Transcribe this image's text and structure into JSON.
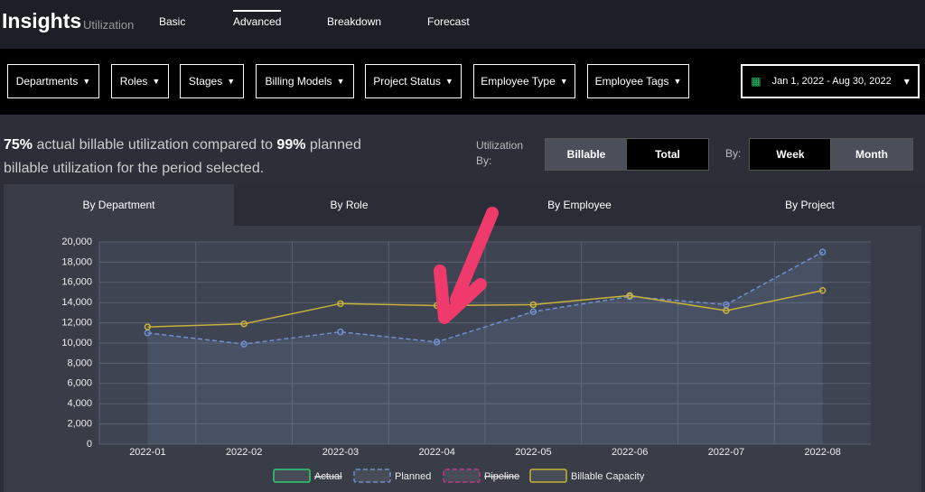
{
  "header": {
    "title": "Insights",
    "subtitle": "Utilization",
    "nav": [
      "Basic",
      "Advanced",
      "Breakdown",
      "Forecast"
    ]
  },
  "filters": [
    "Departments",
    "Roles",
    "Stages",
    "Billing Models",
    "Project Status",
    "Employee Type",
    "Employee Tags"
  ],
  "date_range": "Jan 1, 2022 - Aug 30, 2022",
  "summary": {
    "actual": "75%",
    "text1": "actual billable utilization compared to",
    "planned": "99%",
    "text2": "planned billable utilization for the period selected."
  },
  "utilization_by": {
    "label": "Utilization By:",
    "options": [
      "Billable",
      "Total"
    ]
  },
  "period_by": {
    "label": "By:",
    "options": [
      "Week",
      "Month"
    ]
  },
  "tabs": [
    "By Department",
    "By Role",
    "By Employee",
    "By Project"
  ],
  "chart_data": {
    "type": "line",
    "categories": [
      "2022-01",
      "2022-02",
      "2022-03",
      "2022-04",
      "2022-05",
      "2022-06",
      "2022-07",
      "2022-08"
    ],
    "ylim": [
      0,
      20000
    ],
    "yticks": [
      0,
      {
        "value": 2000,
        "label": "2,000"
      },
      {
        "value": 4000,
        "label": "4,000"
      },
      {
        "value": 6000,
        "label": "6,000"
      },
      {
        "value": 8000,
        "label": "8,000"
      },
      {
        "value": 10000,
        "label": "10,000"
      },
      {
        "value": 12000,
        "label": "12,000"
      },
      {
        "value": 14000,
        "label": "14,000"
      },
      {
        "value": 16000,
        "label": "16,000"
      },
      {
        "value": 18000,
        "label": "18,000"
      },
      {
        "value": 20000,
        "label": "20,000"
      }
    ],
    "grid": true,
    "series": [
      {
        "name": "Actual",
        "color": "#2ecc71",
        "hidden": true
      },
      {
        "name": "Planned",
        "color": "#6f8fd0",
        "dashed": true,
        "values": [
          11000,
          9900,
          11100,
          10100,
          13100,
          14600,
          13800,
          19000
        ]
      },
      {
        "name": "Pipeline",
        "color": "#c03a8a",
        "hidden": true,
        "dashed": true
      },
      {
        "name": "Billable Capacity",
        "color": "#c9b23a",
        "values": [
          11600,
          11900,
          13900,
          13700,
          13800,
          14700,
          13200,
          15200
        ]
      }
    ]
  }
}
